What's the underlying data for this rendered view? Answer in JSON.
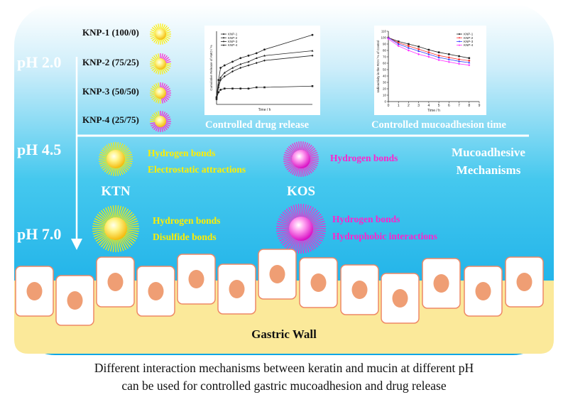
{
  "ph_labels": [
    "pH 2.0",
    "pH 4.5",
    "pH 7.0"
  ],
  "formulations": [
    {
      "label": "KNP-1 (100/0)",
      "fraction": 0
    },
    {
      "label": "KNP-2 (75/25)",
      "fraction": 0.25
    },
    {
      "label": "KNP-3 (50/50)",
      "fraction": 0.5
    },
    {
      "label": "KNP-4 (25/75)",
      "fraction": 0.75
    }
  ],
  "chart_data": [
    {
      "type": "line",
      "caption": "Controlled drug release",
      "xlabel": "Time / h",
      "ylabel": "Cumulative Release of AMO / %",
      "xlim": [
        0,
        24
      ],
      "ylim": [
        0,
        60
      ],
      "series": [
        {
          "name": "KNP-1",
          "x": [
            0,
            0.5,
            1,
            2,
            4,
            6,
            8,
            10,
            12,
            24
          ],
          "y": [
            5,
            10,
            12,
            13,
            13,
            13,
            13,
            14,
            14,
            15
          ]
        },
        {
          "name": "KNP-2",
          "x": [
            0,
            0.5,
            1,
            2,
            4,
            6,
            8,
            10,
            12,
            24
          ],
          "y": [
            6,
            20,
            30,
            32,
            35,
            38,
            40,
            42,
            45,
            57
          ]
        },
        {
          "name": "KNP-3",
          "x": [
            0,
            0.5,
            1,
            2,
            4,
            6,
            8,
            10,
            12,
            24
          ],
          "y": [
            5,
            16,
            22,
            26,
            30,
            33,
            35,
            38,
            40,
            44
          ]
        },
        {
          "name": "KNP-4",
          "x": [
            0,
            0.5,
            1,
            2,
            4,
            6,
            8,
            10,
            12,
            24
          ],
          "y": [
            4,
            14,
            20,
            23,
            27,
            30,
            32,
            34,
            36,
            40
          ]
        }
      ],
      "legend": "top-left"
    },
    {
      "type": "line",
      "caption": "Controlled mucoadhesion time",
      "xlabel": "Time / h",
      "ylabel": "radioactivity in the ROI / % of Control",
      "xticks": [
        0,
        1,
        2,
        3,
        4,
        5,
        6,
        7,
        8,
        9
      ],
      "yticks": [
        0,
        10,
        20,
        30,
        40,
        50,
        60,
        70,
        80,
        90,
        100,
        110
      ],
      "xlim": [
        0,
        9
      ],
      "ylim": [
        0,
        110
      ],
      "series": [
        {
          "name": "KNP-1",
          "color": "#222222",
          "x": [
            0,
            1,
            2,
            3,
            4,
            5,
            6,
            7,
            8
          ],
          "y": [
            100,
            94,
            90,
            86,
            81,
            77,
            74,
            71,
            68
          ]
        },
        {
          "name": "KNP-2",
          "color": "#ff3030",
          "x": [
            0,
            1,
            2,
            3,
            4,
            5,
            6,
            7,
            8
          ],
          "y": [
            100,
            92,
            87,
            82,
            77,
            72,
            69,
            66,
            64
          ]
        },
        {
          "name": "KNP-3",
          "color": "#3040ff",
          "x": [
            0,
            1,
            2,
            3,
            4,
            5,
            6,
            7,
            8
          ],
          "y": [
            100,
            90,
            84,
            79,
            74,
            69,
            66,
            63,
            61
          ]
        },
        {
          "name": "KNP-4",
          "color": "#ff30ff",
          "x": [
            0,
            1,
            2,
            3,
            4,
            5,
            6,
            7,
            8
          ],
          "y": [
            98,
            87,
            80,
            74,
            70,
            65,
            62,
            59,
            57
          ]
        }
      ],
      "legend": "top-right"
    }
  ],
  "mechanisms": {
    "title_line1": "Mucoadhesive",
    "title_line2": "Mechanisms",
    "ktn_label": "KTN",
    "kos_label": "KOS",
    "ktn_mid": [
      "Hydrogen bonds",
      "Electrostatic attractions"
    ],
    "kos_mid": [
      "Hydrogen bonds"
    ],
    "ktn_low": [
      "Hydrogen bonds",
      "Disulfide bonds"
    ],
    "kos_low": [
      "Hydrogen bonds",
      "Hydrophobic interactions"
    ],
    "ktn_color": "#ffee00",
    "kos_color": "#ff22cc"
  },
  "gastric_wall_label": "Gastric Wall",
  "caption_lines": [
    "Different interaction mechanisms between keratin and mucin at different pH",
    "can be used for controlled gastric mucoadhesion and drug release"
  ]
}
